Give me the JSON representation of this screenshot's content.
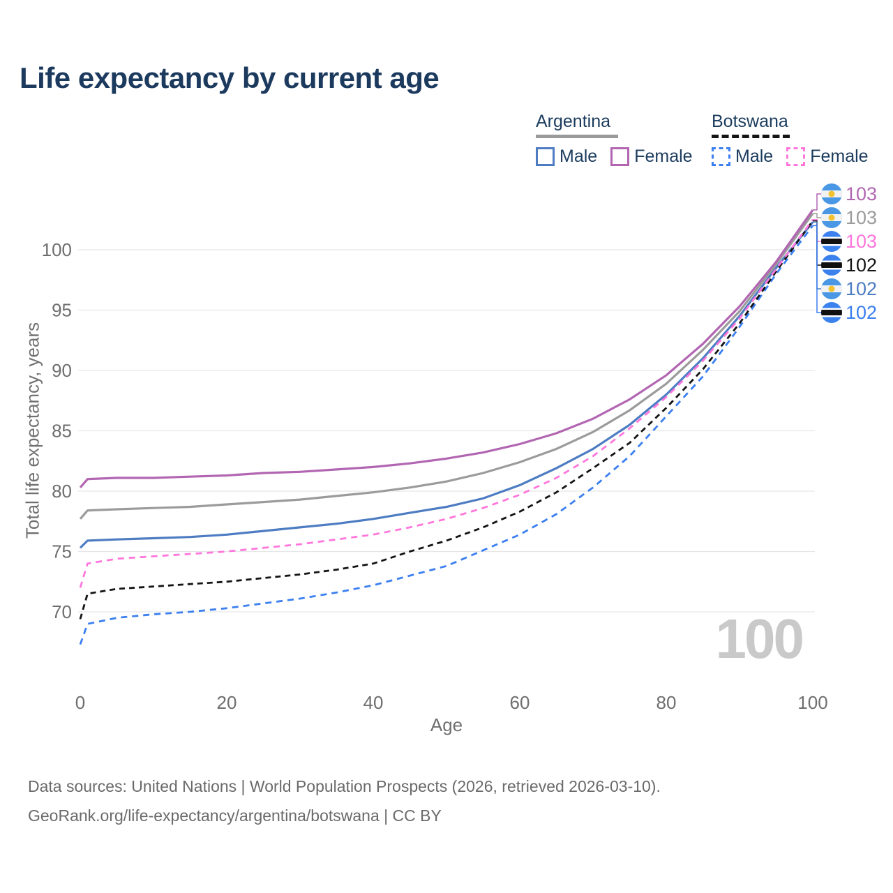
{
  "watermark": "100",
  "legend": {
    "groups": [
      {
        "id": "argentina",
        "label": "Argentina",
        "line_style": "solid",
        "line_color": "#9a9a9a",
        "items": [
          {
            "label": "Male",
            "color": "#4d7cc2",
            "dashed": false
          },
          {
            "label": "Female",
            "color": "#b266b2",
            "dashed": false
          }
        ]
      },
      {
        "id": "botswana",
        "label": "Botswana",
        "line_style": "dashed",
        "line_color": "#141414",
        "items": [
          {
            "label": "Male",
            "color": "#3b7ff0",
            "dashed": true
          },
          {
            "label": "Female",
            "color": "#ff77dd",
            "dashed": true
          }
        ]
      }
    ]
  },
  "chart_data": {
    "type": "line",
    "title": "Life expectancy by current age",
    "xlabel": "Age",
    "ylabel": "Total life expectancy, years",
    "x_ticks": [
      0,
      20,
      40,
      60,
      80,
      100
    ],
    "y_ticks": [
      70,
      75,
      80,
      85,
      90,
      95,
      100
    ],
    "xlim": [
      0,
      100
    ],
    "ylim": [
      66.5,
      103.5
    ],
    "grid": "horizontal",
    "legend_position": "top-right",
    "x": [
      0,
      1,
      5,
      10,
      15,
      20,
      25,
      30,
      35,
      40,
      45,
      50,
      55,
      60,
      65,
      70,
      75,
      80,
      85,
      90,
      95,
      100
    ],
    "series": [
      {
        "name": "Argentina Female",
        "slug": "argentina-female",
        "country": "Argentina",
        "sex": "Female",
        "color": "#b266b2",
        "dash": false,
        "end_label": "103",
        "flag": "argentina",
        "values": [
          80.3,
          81.0,
          81.1,
          81.1,
          81.2,
          81.3,
          81.5,
          81.6,
          81.8,
          82.0,
          82.3,
          82.7,
          83.2,
          83.9,
          84.8,
          86.0,
          87.6,
          89.6,
          92.2,
          95.3,
          99.0,
          103.3
        ]
      },
      {
        "name": "Argentina Both sexes",
        "slug": "argentina-total",
        "country": "Argentina",
        "sex": "Both",
        "color": "#9b9b9b",
        "dash": false,
        "end_label": "103",
        "flag": "argentina",
        "values": [
          77.7,
          78.4,
          78.5,
          78.6,
          78.7,
          78.9,
          79.1,
          79.3,
          79.6,
          79.9,
          80.3,
          80.8,
          81.5,
          82.4,
          83.5,
          84.9,
          86.7,
          88.9,
          91.7,
          94.9,
          98.8,
          103.0
        ]
      },
      {
        "name": "Botswana Female",
        "slug": "botswana-female",
        "country": "Botswana",
        "sex": "Female",
        "color": "#ff77dd",
        "dash": true,
        "end_label": "103",
        "flag": "botswana",
        "values": [
          72.0,
          74.0,
          74.4,
          74.6,
          74.8,
          75.0,
          75.3,
          75.6,
          76.0,
          76.4,
          77.0,
          77.7,
          78.6,
          79.7,
          81.1,
          82.9,
          85.2,
          87.8,
          90.8,
          94.3,
          98.4,
          102.5
        ]
      },
      {
        "name": "Botswana Both sexes",
        "slug": "botswana-total",
        "country": "Botswana",
        "sex": "Both",
        "color": "#141414",
        "dash": true,
        "end_label": "102",
        "flag": "botswana",
        "values": [
          69.4,
          71.5,
          71.9,
          72.1,
          72.3,
          72.5,
          72.8,
          73.1,
          73.5,
          74.0,
          75.0,
          75.9,
          77.0,
          78.3,
          79.9,
          81.9,
          84.0,
          86.9,
          90.1,
          93.9,
          98.2,
          102.4
        ]
      },
      {
        "name": "Argentina Male",
        "slug": "argentina-male",
        "country": "Argentina",
        "sex": "Male",
        "color": "#4d7cc2",
        "dash": false,
        "end_label": "102",
        "flag": "argentina",
        "values": [
          75.3,
          75.9,
          76.0,
          76.1,
          76.2,
          76.4,
          76.7,
          77.0,
          77.3,
          77.7,
          78.2,
          78.7,
          79.4,
          80.5,
          81.9,
          83.5,
          85.5,
          88.0,
          91.0,
          94.5,
          98.5,
          102.3
        ]
      },
      {
        "name": "Botswana Male",
        "slug": "botswana-male",
        "country": "Botswana",
        "sex": "Male",
        "color": "#3b7ff0",
        "dash": true,
        "end_label": "102",
        "flag": "botswana",
        "values": [
          67.3,
          69.0,
          69.5,
          69.8,
          70.0,
          70.3,
          70.7,
          71.1,
          71.6,
          72.2,
          73.0,
          73.8,
          75.1,
          76.4,
          78.1,
          80.3,
          82.9,
          86.2,
          89.5,
          93.6,
          98.0,
          102.0
        ]
      }
    ]
  },
  "flag_colors": {
    "argentina": {
      "band": "#4a97e5",
      "middle": "#f2f2f2",
      "sun": "#f3c231"
    },
    "botswana": {
      "base": "#3b82ee",
      "stripe": "#101010",
      "edge": "#ffffff"
    }
  },
  "footer": {
    "line1": "Data sources: United Nations | World Population Prospects (2026, retrieved 2026-03-10).",
    "line2": "GeoRank.org/life-expectancy/argentina/botswana | CC BY"
  }
}
